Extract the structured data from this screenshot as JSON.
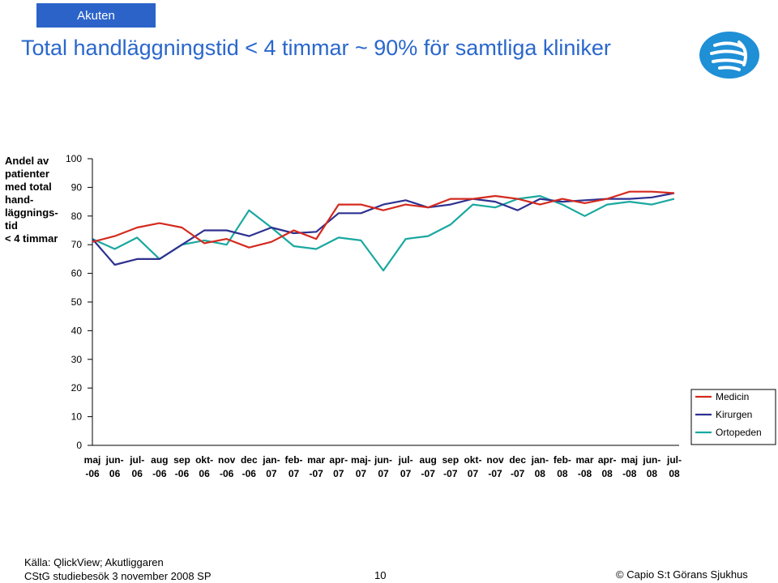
{
  "header": {
    "tab_label": "Akuten",
    "title": "Total handläggningstid < 4 timmar ~ 90% för samtliga kliniker"
  },
  "footer": {
    "source": "Källa: QlickView; Akutliggaren",
    "study": "CStG studiebesök 3 november 2008 SP",
    "page": "10",
    "copyright_symbol": "©",
    "copyright": "Capio S:t Görans Sjukhus"
  },
  "chart_data": {
    "type": "line",
    "ylabel": "Andel av\npatienter\nmed total\nhand-\nläggnings-\ntid\n< 4 timmar",
    "ylim": [
      0,
      100
    ],
    "yticks": [
      "0",
      "10",
      "20",
      "30",
      "40",
      "50",
      "60",
      "70",
      "80",
      "90",
      "100"
    ],
    "categories": [
      [
        "maj",
        "-06"
      ],
      [
        "jun-",
        "06"
      ],
      [
        "jul-",
        "06"
      ],
      [
        "aug",
        "-06"
      ],
      [
        "sep",
        "-06"
      ],
      [
        "okt-",
        "06"
      ],
      [
        "nov",
        "-06"
      ],
      [
        "dec",
        "-06"
      ],
      [
        "jan-",
        "07"
      ],
      [
        "feb-",
        "07"
      ],
      [
        "mar",
        "-07"
      ],
      [
        "apr-",
        "07"
      ],
      [
        "maj-",
        "07"
      ],
      [
        "jun-",
        "07"
      ],
      [
        "jul-",
        "07"
      ],
      [
        "aug",
        "-07"
      ],
      [
        "sep",
        "-07"
      ],
      [
        "okt-",
        "07"
      ],
      [
        "nov",
        "-07"
      ],
      [
        "dec",
        "-07"
      ],
      [
        "jan-",
        "08"
      ],
      [
        "feb-",
        "08"
      ],
      [
        "mar",
        "-08"
      ],
      [
        "apr-",
        "08"
      ],
      [
        "maj",
        "-08"
      ],
      [
        "jun-",
        "08"
      ],
      [
        "jul-",
        "08"
      ]
    ],
    "series": [
      {
        "name": "Medicin",
        "color": "#d42a1e",
        "values": [
          71,
          73,
          76,
          77.5,
          76,
          70.5,
          72,
          69,
          71,
          75,
          72,
          84,
          84,
          82,
          84,
          83,
          86,
          86,
          87,
          86,
          84,
          86,
          84.5,
          86,
          88.5,
          88.5,
          88
        ]
      },
      {
        "name": "Kirurgen",
        "color": "#2e3190",
        "values": [
          72,
          63,
          65,
          65,
          70,
          75,
          75,
          73,
          76,
          74,
          74.5,
          81,
          81,
          84,
          85.5,
          83,
          84,
          86,
          85,
          82,
          86,
          85,
          85.5,
          86,
          86,
          86.5,
          88
        ]
      },
      {
        "name": "Ortopeden",
        "color": "#1aa8a0",
        "values": [
          72,
          68.5,
          72.5,
          65,
          70,
          71.5,
          70,
          82,
          76,
          69.5,
          68.5,
          72.5,
          71.5,
          61,
          72,
          73,
          77,
          84,
          83,
          86,
          87,
          84,
          80,
          84,
          85,
          84,
          86
        ]
      }
    ],
    "legend_position": "right",
    "grid": false
  }
}
